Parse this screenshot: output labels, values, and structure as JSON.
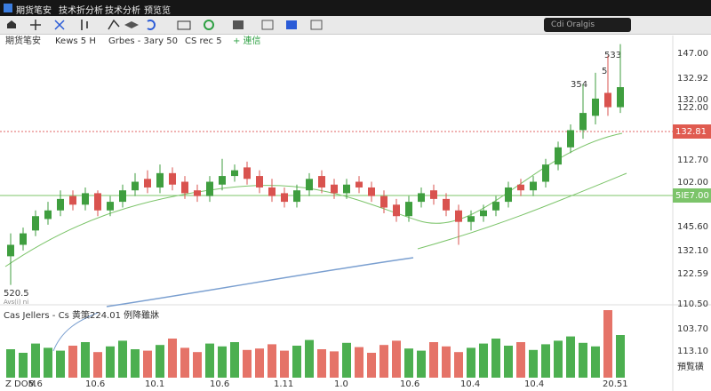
{
  "menu": [
    "期货笔安",
    "技术折分析",
    "技术分析",
    "预览览"
  ],
  "search": "Cdi Oralgis",
  "legend": [
    "期货笔安",
    "Kews 5 H",
    "Grbes - 3ary 50",
    "CS rec 5",
    "+ 連信"
  ],
  "price_labels": [
    "147.00",
    "132.92",
    "132.00",
    "122.00",
    "112.70",
    "102.00",
    "145.60",
    "132.10",
    "122.59",
    "110.50",
    "103.70",
    "113.10"
  ],
  "badges": [
    "132.81",
    "5IE7.00"
  ],
  "annotations": [
    "354",
    "5",
    "533"
  ],
  "left_labels": [
    "520.5",
    "Avs(i) ni"
  ],
  "volume_legend": "Cas Jellers - Cs 黄策224.01 例降雖牀",
  "dates": [
    "Z DOM",
    "5.6",
    "10.6",
    "10.1",
    "10.6",
    "1.11",
    "1.0",
    "10.6",
    "10.4",
    "10.4",
    "20.51"
  ],
  "corner_label": "預覧磺",
  "chart": {
    "type": "candlestick",
    "ylim": [
      60,
      153
    ],
    "vlim": [
      0,
      100
    ],
    "open": [
      76,
      80,
      85,
      89,
      92,
      97,
      94,
      98,
      92,
      95,
      99,
      103,
      100,
      105,
      102,
      99,
      97,
      101,
      104,
      107,
      104,
      100,
      98,
      95,
      99,
      104,
      101,
      98,
      102,
      100,
      97,
      94,
      90,
      95,
      99,
      96,
      92,
      88,
      90,
      92,
      95,
      101,
      99,
      102,
      108,
      114,
      120,
      125,
      133,
      128
    ],
    "high": [
      84,
      86,
      92,
      95,
      99,
      99,
      100,
      99,
      97,
      101,
      105,
      106,
      108,
      107,
      104,
      101,
      104,
      110,
      108,
      109,
      106,
      103,
      100,
      101,
      105,
      106,
      103,
      103,
      104,
      102,
      99,
      96,
      97,
      100,
      101,
      98,
      94,
      92,
      94,
      97,
      102,
      103,
      104,
      110,
      116,
      122,
      136,
      140,
      146,
      150
    ],
    "low": [
      66,
      78,
      83,
      87,
      90,
      92,
      92,
      90,
      90,
      93,
      97,
      98,
      98,
      99,
      96,
      95,
      95,
      99,
      102,
      101,
      98,
      95,
      93,
      93,
      97,
      98,
      96,
      96,
      98,
      95,
      91,
      88,
      88,
      93,
      94,
      90,
      80,
      85,
      88,
      90,
      93,
      97,
      97,
      100,
      106,
      112,
      117,
      122,
      125,
      126
    ],
    "close": [
      80,
      84,
      90,
      92,
      96,
      94,
      98,
      92,
      95,
      99,
      102,
      100,
      105,
      101,
      98,
      97,
      102,
      104,
      106,
      103,
      100,
      97,
      95,
      99,
      103,
      100,
      98,
      101,
      100,
      97,
      93,
      90,
      95,
      98,
      96,
      92,
      88,
      90,
      92,
      95,
      100,
      99,
      102,
      108,
      114,
      120,
      126,
      131,
      128,
      135
    ],
    "volume": [
      40,
      35,
      48,
      42,
      38,
      45,
      50,
      36,
      44,
      52,
      40,
      38,
      46,
      55,
      42,
      36,
      48,
      44,
      50,
      39,
      41,
      47,
      38,
      45,
      53,
      40,
      37,
      49,
      43,
      35,
      46,
      52,
      41,
      38,
      50,
      44,
      36,
      42,
      48,
      55,
      45,
      50,
      39,
      47,
      52,
      58,
      49,
      44,
      95,
      60
    ]
  }
}
